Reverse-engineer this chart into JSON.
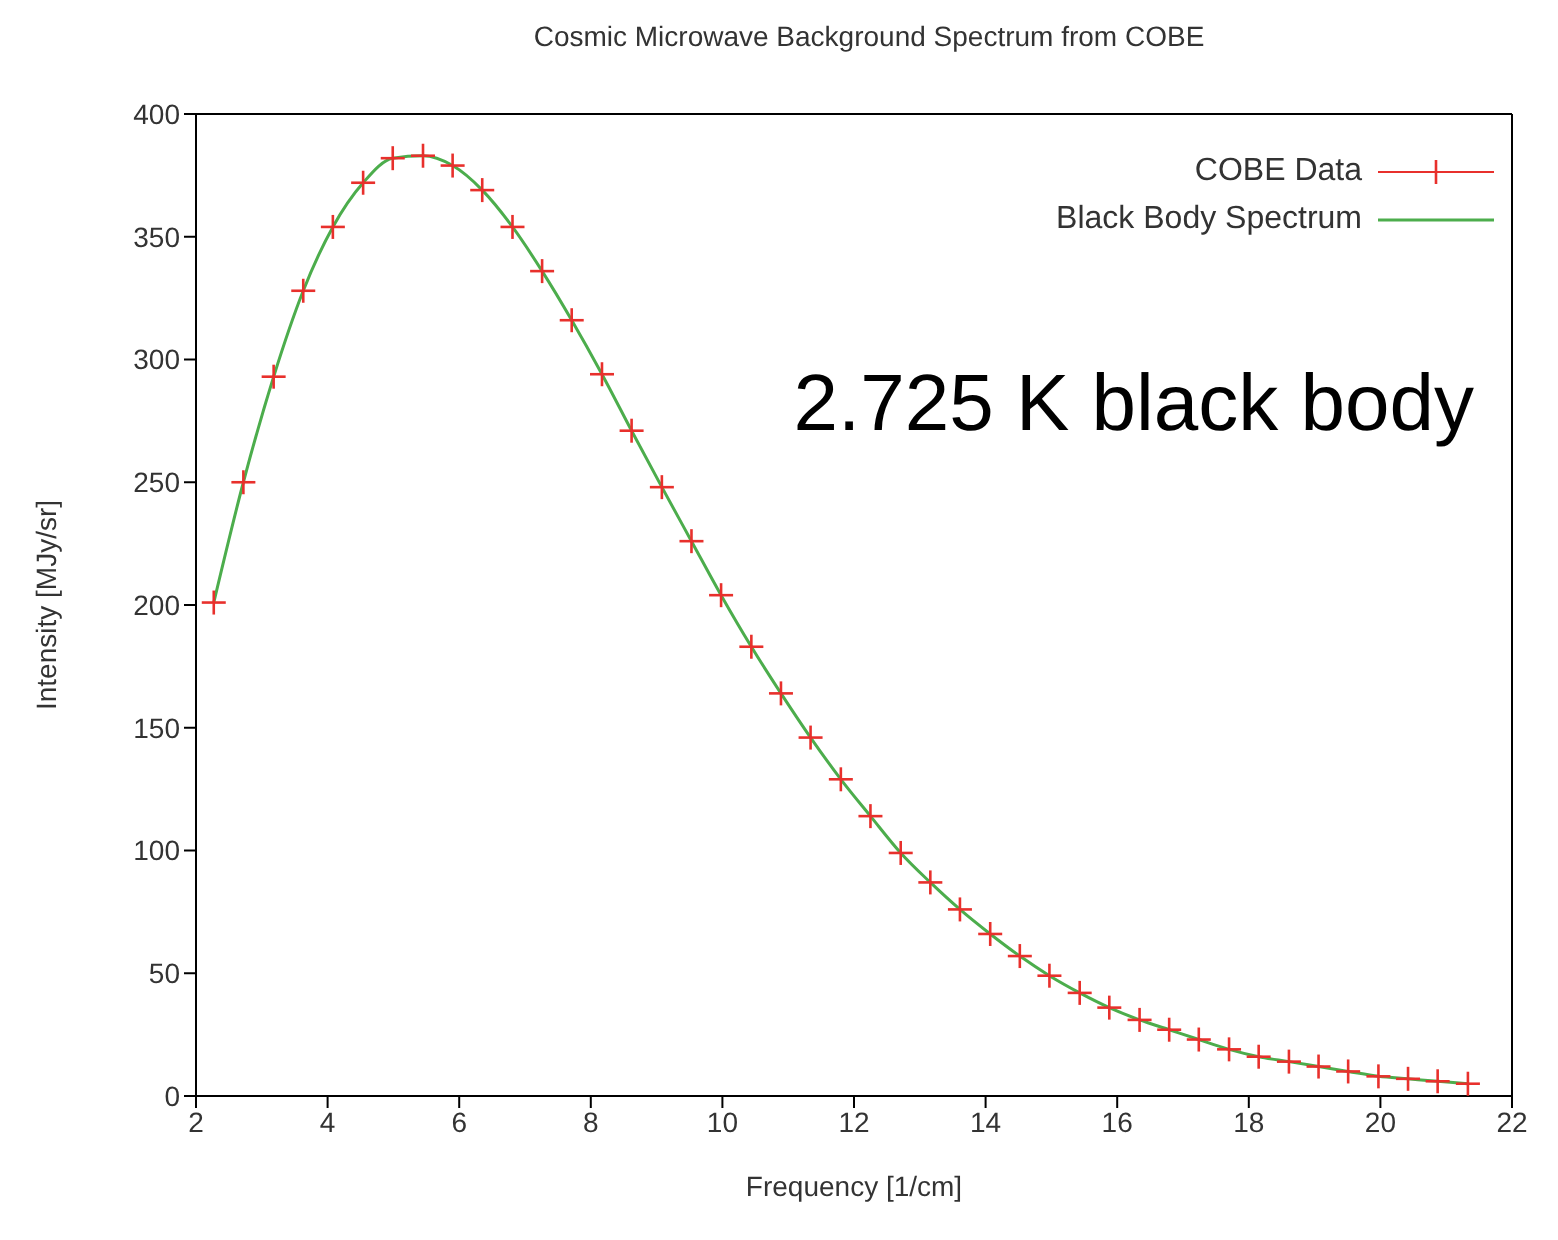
{
  "chart_data": {
    "type": "line",
    "title": "Cosmic Microwave Background Spectrum from COBE",
    "xlabel": "Frequency [1/cm]",
    "ylabel": "Intensity [MJy/sr]",
    "annotations": [
      "2.725 K black body"
    ],
    "xlim": [
      2,
      22
    ],
    "xticks": [
      2,
      4,
      6,
      8,
      10,
      12,
      14,
      16,
      18,
      20,
      22
    ],
    "ylim": [
      0,
      400
    ],
    "yticks": [
      0,
      50,
      100,
      150,
      200,
      250,
      300,
      350,
      400
    ],
    "legend": "top right",
    "series": [
      {
        "name": "COBE Data",
        "type": "scatter",
        "marker": "cross",
        "color": "#e8302c",
        "x": [
          2.27,
          2.72,
          3.18,
          3.63,
          4.08,
          4.54,
          4.99,
          5.45,
          5.9,
          6.35,
          6.81,
          7.26,
          7.71,
          8.17,
          8.62,
          9.08,
          9.53,
          9.98,
          10.44,
          10.89,
          11.34,
          11.8,
          12.25,
          12.71,
          13.16,
          13.61,
          14.07,
          14.52,
          14.97,
          15.43,
          15.88,
          16.34,
          16.79,
          17.24,
          17.7,
          18.15,
          18.61,
          19.06,
          19.51,
          19.97,
          20.42,
          20.87,
          21.33
        ],
        "values": [
          201,
          250,
          293,
          328,
          354,
          372,
          382,
          383,
          379,
          369,
          354,
          336,
          316,
          294,
          271,
          248,
          226,
          204,
          183,
          164,
          146,
          129,
          114,
          99,
          87,
          76,
          66,
          57,
          49,
          42,
          36,
          31,
          27,
          23,
          19,
          16,
          14,
          12,
          10,
          8,
          7,
          6,
          5
        ]
      },
      {
        "name": "Black Body Spectrum",
        "marker": "none",
        "line_style": "solid",
        "color": "#4cad4c",
        "x": [
          2.27,
          2.72,
          3.18,
          3.63,
          4.08,
          4.54,
          4.99,
          5.45,
          5.9,
          6.35,
          6.81,
          7.26,
          7.71,
          8.17,
          8.62,
          9.08,
          9.53,
          9.98,
          10.44,
          10.89,
          11.34,
          11.8,
          12.25,
          12.71,
          13.16,
          13.61,
          14.07,
          14.52,
          14.97,
          15.43,
          15.88,
          16.34,
          16.79,
          17.24,
          17.7,
          18.15,
          18.61,
          19.06,
          19.51,
          19.97,
          20.42,
          20.87,
          21.33
        ],
        "values": [
          201,
          250,
          293,
          328,
          354,
          372,
          382,
          383,
          379,
          369,
          354,
          336,
          316,
          294,
          271,
          248,
          226,
          204,
          183,
          164,
          146,
          129,
          114,
          99,
          87,
          76,
          66,
          57,
          49,
          42,
          36,
          31,
          27,
          23,
          19,
          16,
          14,
          12,
          10,
          8,
          7,
          6,
          5
        ]
      }
    ]
  }
}
